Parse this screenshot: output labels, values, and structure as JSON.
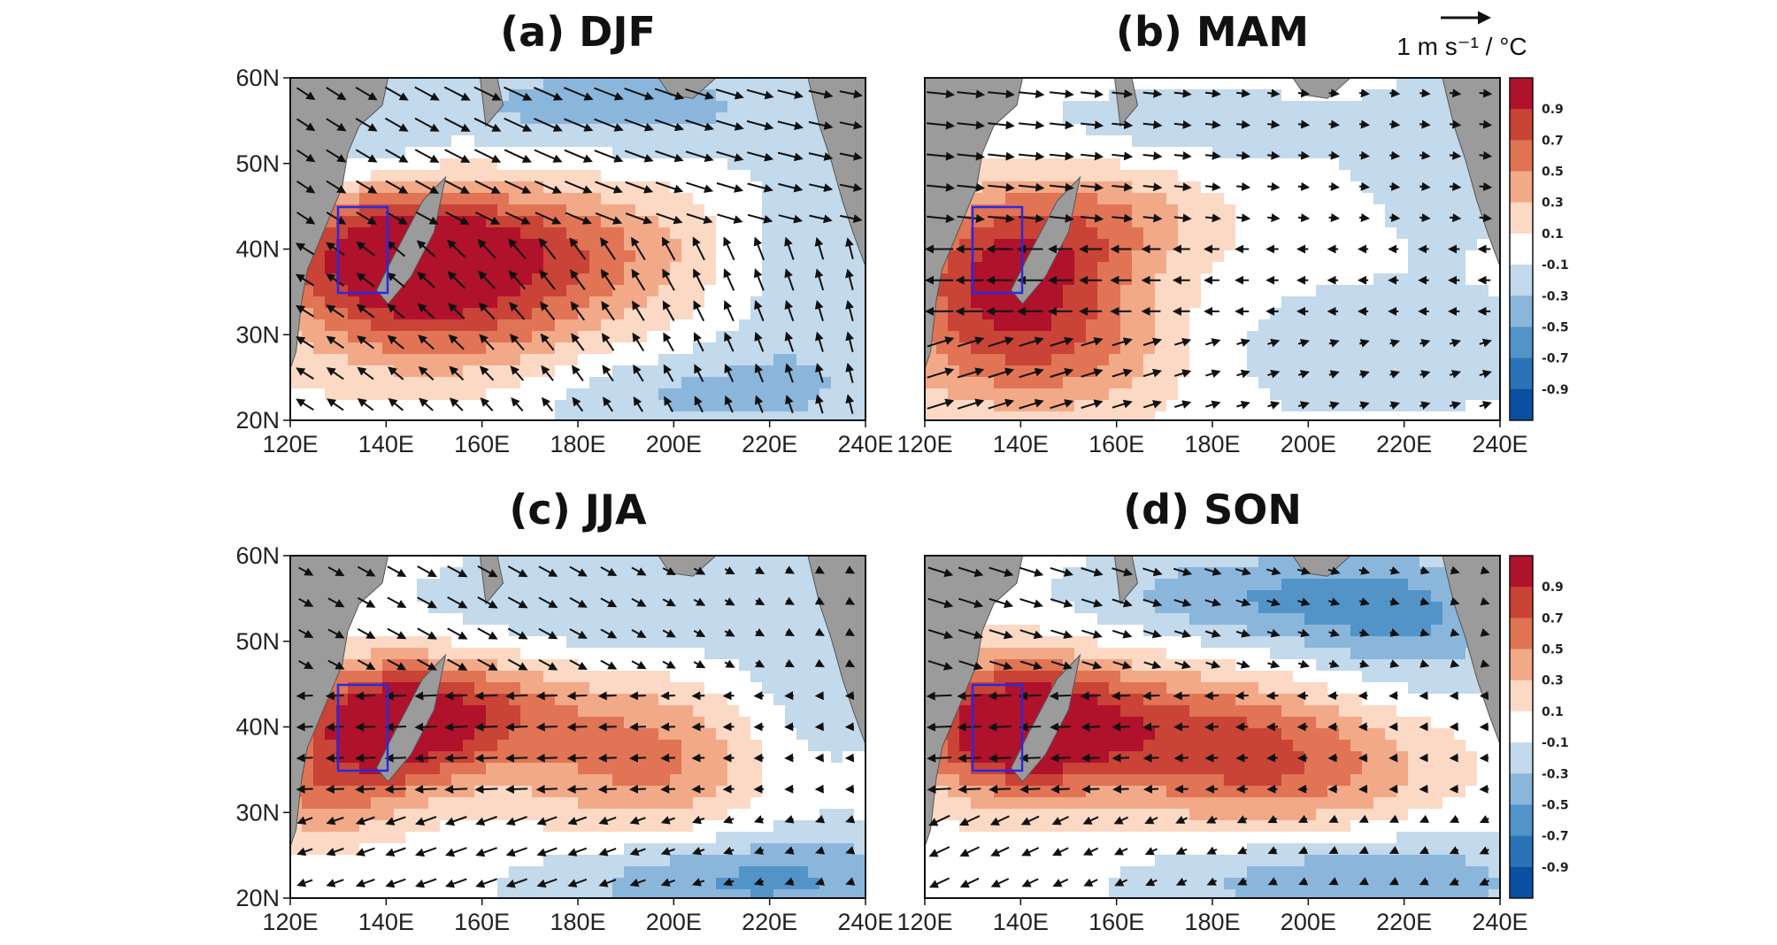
{
  "figure": {
    "colors": {
      "land": "#9b9b9b",
      "box": "#2a2adf",
      "contour": "#111111",
      "scale": [
        "#0b4fa3",
        "#2a73b6",
        "#5294c8",
        "#8bb6dc",
        "#c3d9ec",
        "#ffffff",
        "#fbd9c4",
        "#f2a988",
        "#e07454",
        "#c94337",
        "#b0112b"
      ]
    },
    "colorbar": {
      "tick_labels": [
        "0.9",
        "0.7",
        "0.5",
        "0.3",
        "0.1",
        "-0.1",
        "-0.3",
        "-0.5",
        "-0.7",
        "-0.9"
      ]
    },
    "reference_vector": {
      "label": "1 m s⁻¹ / °C"
    },
    "x_ticks": [
      "120E",
      "140E",
      "160E",
      "180E",
      "200E",
      "220E",
      "240E"
    ],
    "y_ticks": [
      "60N",
      "50N",
      "40N",
      "30N",
      "20N"
    ],
    "panels": [
      {
        "title": "(a) DJF",
        "season": "DJF"
      },
      {
        "title": "(b) MAM",
        "season": "MAM"
      },
      {
        "title": "(c) JJA",
        "season": "JJA"
      },
      {
        "title": "(d) SON",
        "season": "SON"
      }
    ]
  }
}
